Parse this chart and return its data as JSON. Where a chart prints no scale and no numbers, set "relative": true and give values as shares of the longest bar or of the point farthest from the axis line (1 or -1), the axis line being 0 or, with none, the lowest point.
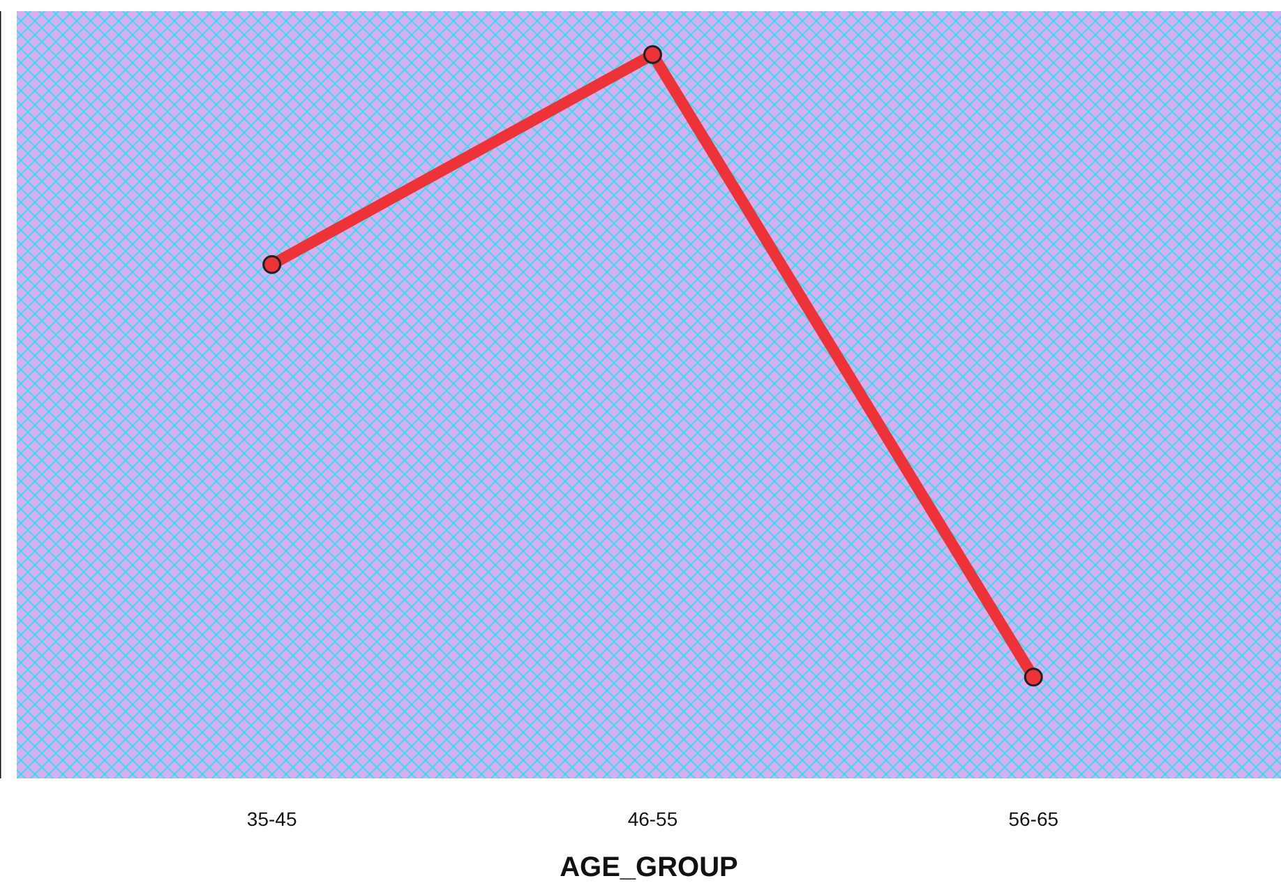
{
  "chart_data": {
    "type": "line",
    "xlabel": "AGE_GROUP",
    "categories": [
      "35-45",
      "46-55",
      "56-65"
    ],
    "relative": true,
    "series": [
      {
        "color": "#ee3338",
        "values": [
          0.71,
          1,
          0.14
        ]
      }
    ],
    "marker": "circle",
    "line_style": "solid"
  }
}
